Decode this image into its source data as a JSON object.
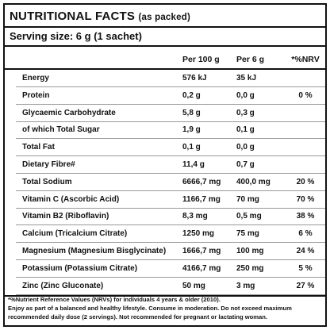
{
  "header": {
    "title": "NUTRITIONAL FACTS",
    "title_note": "(as packed)",
    "serving": "Serving size: 6 g (1 sachet)"
  },
  "table": {
    "columns": [
      "Per 100 g",
      "Per 6 g",
      "*%NRV"
    ],
    "rows": [
      {
        "label": "Energy",
        "per_100g": "576 kJ",
        "per_serving": "35 kJ"
      },
      {
        "label": "Protein",
        "per_100g": "0,2 g",
        "per_serving": "0,0 g",
        "nrv": "0 %"
      },
      {
        "label": "Glycaemic Carbohydrate",
        "per_100g": "5,8 g",
        "per_serving": "0,3 g"
      },
      {
        "label": "of which Total Sugar",
        "per_100g": "1,9 g",
        "per_serving": "0,1 g"
      },
      {
        "label": "Total Fat",
        "per_100g": "0,1 g",
        "per_serving": "0,0 g"
      },
      {
        "label": "Dietary Fibre#",
        "per_100g": "11,4 g",
        "per_serving": "0,7 g"
      },
      {
        "label": "Total Sodium",
        "per_100g": "6666,7 mg",
        "per_serving": "400,0 mg",
        "nrv": "20 %"
      },
      {
        "label": "Vitamin C (Ascorbic Acid)",
        "per_100g": "1166,7 mg",
        "per_serving": "70 mg",
        "nrv": "70 %"
      },
      {
        "label": "Vitamin B2 (Riboflavin)",
        "per_100g": "8,3 mg",
        "per_serving": "0,5 mg",
        "nrv": "38 %"
      },
      {
        "label": "Calcium (Tricalcium Citrate)",
        "per_100g": "1250 mg",
        "per_serving": "75 mg",
        "nrv": "6 %"
      },
      {
        "label": "Magnesium (Magnesium Bisglycinate)",
        "per_100g": "1666,7 mg",
        "per_serving": "100 mg",
        "nrv": "24 %"
      },
      {
        "label": "Potassium (Potassium Citrate)",
        "per_100g": "4166,7 mg",
        "per_serving": "250 mg",
        "nrv": "5 %"
      },
      {
        "label": "Zinc (Zinc Gluconate)",
        "per_100g": "50 mg",
        "per_serving": "3 mg",
        "nrv": "27 %"
      }
    ]
  },
  "footnotes": [
    "*%Nutrient Reference Values (NRVs) for individuals 4 years & older (2010).",
    "Enjoy as part of a balanced and healthy lifestyle. Consume in moderation. Do not exceed maximum recommended daily dose (2 servings). Not recommended for pregnant or lactating woman."
  ]
}
